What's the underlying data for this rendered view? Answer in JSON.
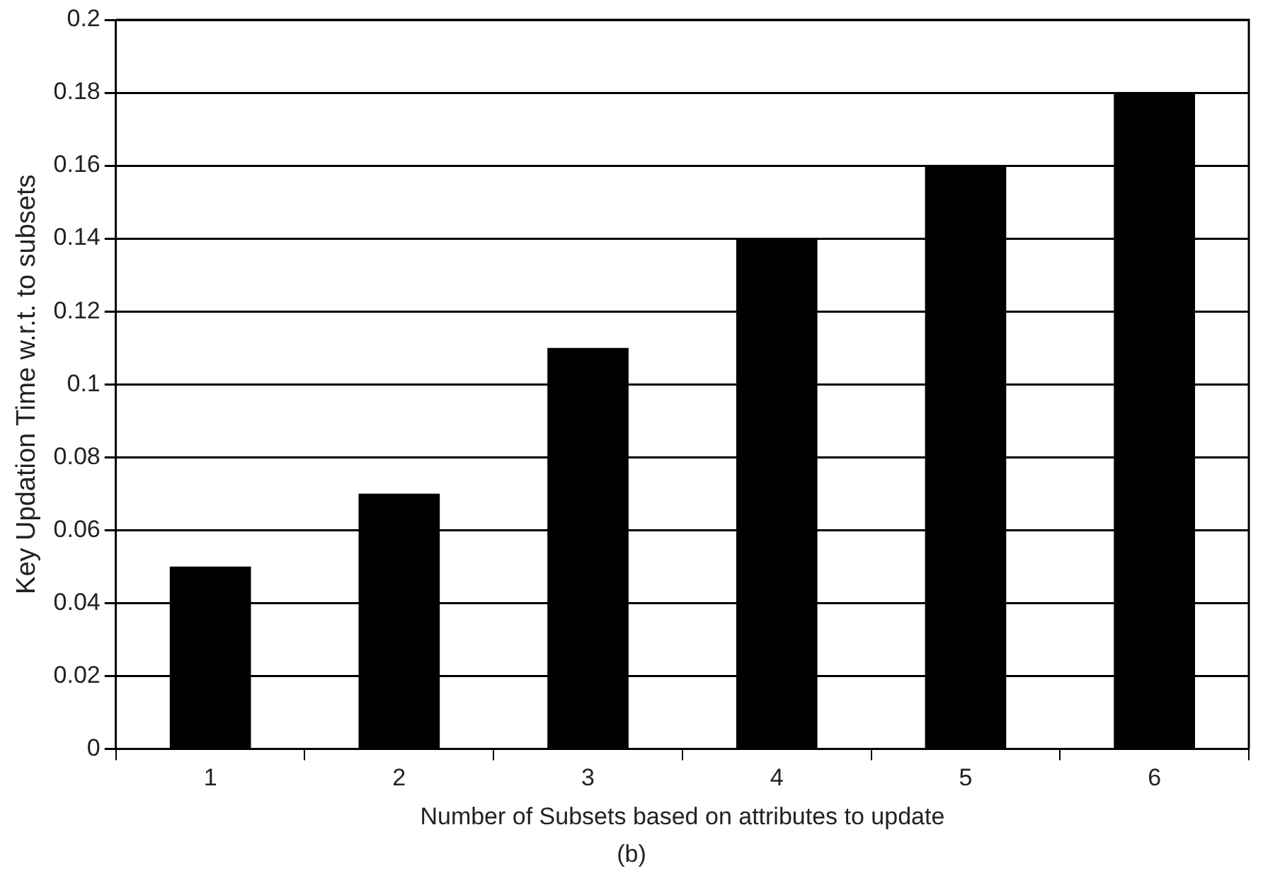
{
  "chart_data": {
    "type": "bar",
    "xlabel": "Number of Subsets based on attributes to update",
    "ylabel": "Key Updation Time w.r.t. to subsets",
    "categories": [
      "1",
      "2",
      "3",
      "4",
      "5",
      "6"
    ],
    "values": [
      0.05,
      0.07,
      0.11,
      0.14,
      0.16,
      0.18
    ],
    "color": "#000000",
    "ylim": [
      0,
      0.2
    ],
    "yticks": [
      0,
      0.02,
      0.04,
      0.06,
      0.08,
      0.1,
      0.12,
      0.14,
      0.16,
      0.18,
      0.2
    ],
    "grid": "y",
    "legend": false,
    "annotations": [
      "(b)"
    ]
  }
}
